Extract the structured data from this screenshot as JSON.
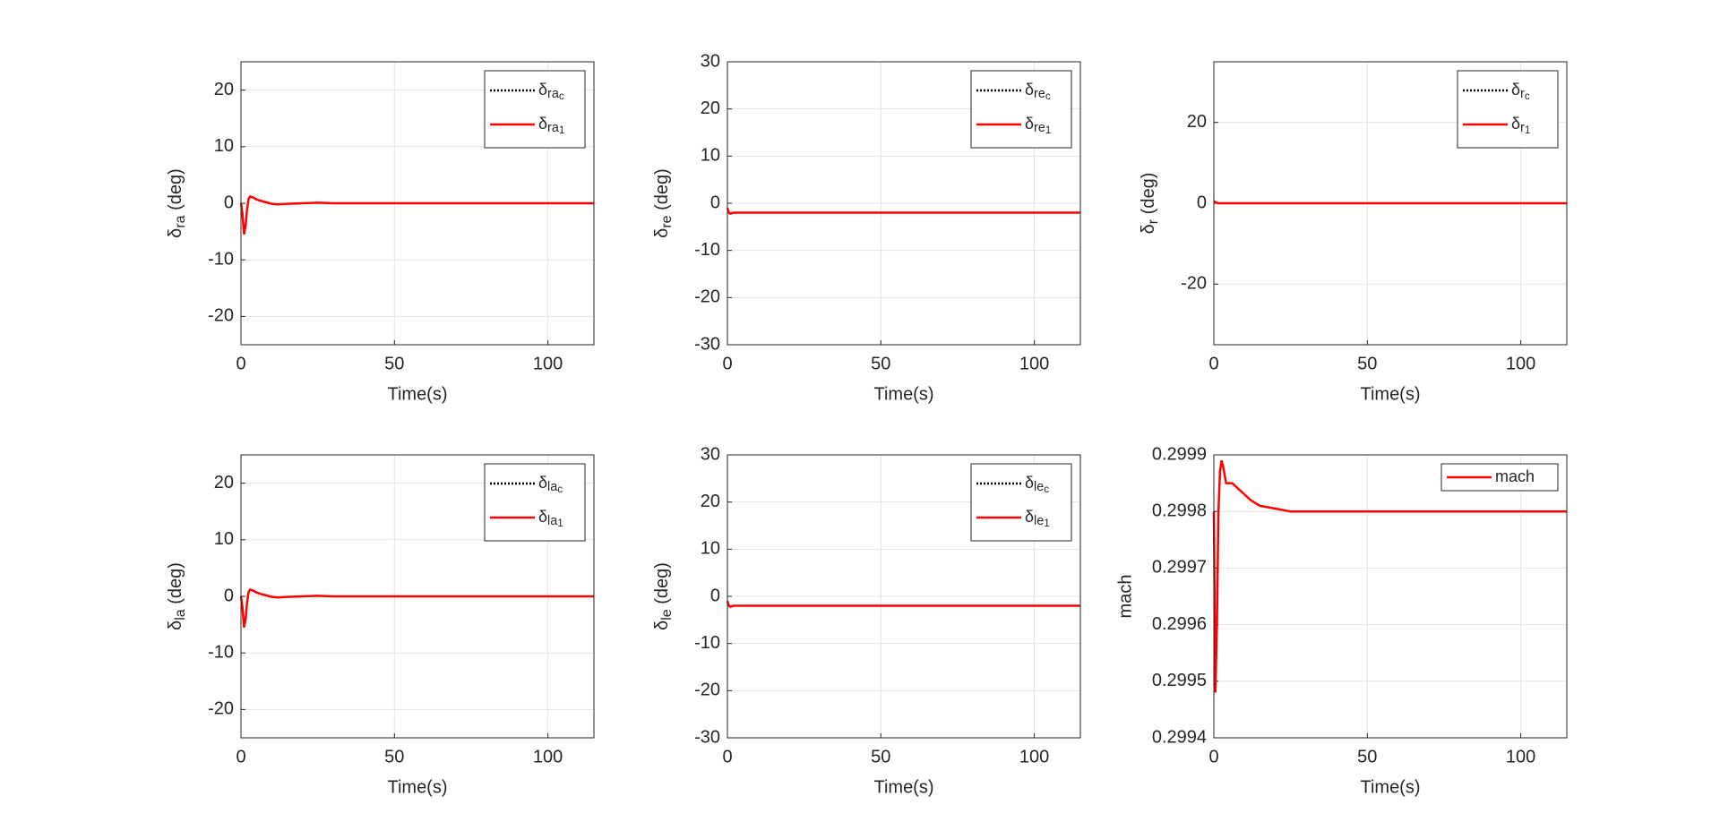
{
  "chart_data": [
    {
      "type": "line",
      "xlabel": "Time(s)",
      "ylabel": "δ_{ra} (deg)",
      "x": [
        0,
        0.5,
        1,
        1.5,
        2,
        2.5,
        3,
        4,
        5,
        6,
        8,
        10,
        12,
        15,
        20,
        25,
        30,
        40,
        60,
        80,
        100,
        115
      ],
      "series": [
        {
          "name": "δ_{ra_c}",
          "color": "#000000",
          "style": "dotted",
          "values": [
            0,
            -2,
            -5.5,
            -4,
            -1,
            0.8,
            1.2,
            1,
            0.7,
            0.5,
            0.2,
            -0.1,
            -0.2,
            -0.1,
            0,
            0.1,
            0,
            0,
            0,
            0,
            0,
            0
          ]
        },
        {
          "name": "δ_{ra_1}",
          "color": "#ff0000",
          "style": "solid",
          "values": [
            0,
            -2,
            -5.5,
            -4,
            -1,
            0.8,
            1.2,
            1,
            0.7,
            0.5,
            0.2,
            -0.1,
            -0.2,
            -0.1,
            0,
            0.1,
            0,
            0,
            0,
            0,
            0,
            0
          ]
        }
      ],
      "xlim": [
        0,
        115
      ],
      "xticks": [
        0,
        50,
        100
      ],
      "ylim": [
        -25,
        25
      ],
      "yticks": [
        -20,
        -10,
        0,
        10,
        20
      ],
      "grid": true,
      "legend": "northeast"
    },
    {
      "type": "line",
      "xlabel": "Time(s)",
      "ylabel": "δ_{re} (deg)",
      "x": [
        0,
        0.5,
        1,
        1.5,
        2,
        2.5,
        3,
        4,
        5,
        6,
        8,
        10,
        12,
        15,
        20,
        25,
        30,
        40,
        60,
        80,
        100,
        115
      ],
      "series": [
        {
          "name": "δ_{re_c}",
          "color": "#000000",
          "style": "dotted",
          "values": [
            -1,
            -2,
            -2.2,
            -2.1,
            -2,
            -2,
            -2,
            -2,
            -2,
            -2,
            -2,
            -2,
            -2,
            -2,
            -2,
            -2,
            -2,
            -2,
            -2,
            -2,
            -2,
            -2
          ]
        },
        {
          "name": "δ_{re_1}",
          "color": "#ff0000",
          "style": "solid",
          "values": [
            -1,
            -2,
            -2.2,
            -2.1,
            -2,
            -2,
            -2,
            -2,
            -2,
            -2,
            -2,
            -2,
            -2,
            -2,
            -2,
            -2,
            -2,
            -2,
            -2,
            -2,
            -2,
            -2
          ]
        }
      ],
      "xlim": [
        0,
        115
      ],
      "xticks": [
        0,
        50,
        100
      ],
      "ylim": [
        -30,
        30
      ],
      "yticks": [
        -30,
        -20,
        -10,
        0,
        10,
        20,
        30
      ],
      "grid": true,
      "legend": "northeast"
    },
    {
      "type": "line",
      "xlabel": "Time(s)",
      "ylabel": "δ_{r} (deg)",
      "x": [
        0,
        0.5,
        1,
        1.5,
        2,
        2.5,
        3,
        4,
        5,
        6,
        8,
        10,
        12,
        15,
        20,
        25,
        30,
        40,
        60,
        80,
        100,
        115
      ],
      "series": [
        {
          "name": "δ_{r_c}",
          "color": "#000000",
          "style": "dotted",
          "values": [
            0.5,
            0.3,
            0.1,
            0,
            0,
            0,
            0,
            0,
            0,
            0,
            0,
            0,
            0,
            0,
            0,
            0,
            0,
            0,
            0,
            0,
            0,
            0
          ]
        },
        {
          "name": "δ_{r_1}",
          "color": "#ff0000",
          "style": "solid",
          "values": [
            0.5,
            0.3,
            0.1,
            0,
            0,
            0,
            0,
            0,
            0,
            0,
            0,
            0,
            0,
            0,
            0,
            0,
            0,
            0,
            0,
            0,
            0,
            0
          ]
        }
      ],
      "xlim": [
        0,
        115
      ],
      "xticks": [
        0,
        50,
        100
      ],
      "ylim": [
        -35,
        35
      ],
      "yticks": [
        -20,
        0,
        20
      ],
      "grid": true,
      "legend": "northeast"
    },
    {
      "type": "line",
      "xlabel": "Time(s)",
      "ylabel": "δ_{la} (deg)",
      "x": [
        0,
        0.5,
        1,
        1.5,
        2,
        2.5,
        3,
        4,
        5,
        6,
        8,
        10,
        12,
        15,
        20,
        25,
        30,
        40,
        60,
        80,
        100,
        115
      ],
      "series": [
        {
          "name": "δ_{la_c}",
          "color": "#000000",
          "style": "dotted",
          "values": [
            0,
            -2,
            -5.5,
            -4,
            -1,
            0.8,
            1.2,
            1,
            0.7,
            0.5,
            0.2,
            -0.1,
            -0.2,
            -0.1,
            0,
            0.1,
            0,
            0,
            0,
            0,
            0,
            0
          ]
        },
        {
          "name": "δ_{la_1}",
          "color": "#ff0000",
          "style": "solid",
          "values": [
            0,
            -2,
            -5.5,
            -4,
            -1,
            0.8,
            1.2,
            1,
            0.7,
            0.5,
            0.2,
            -0.1,
            -0.2,
            -0.1,
            0,
            0.1,
            0,
            0,
            0,
            0,
            0,
            0
          ]
        }
      ],
      "xlim": [
        0,
        115
      ],
      "xticks": [
        0,
        50,
        100
      ],
      "ylim": [
        -25,
        25
      ],
      "yticks": [
        -20,
        -10,
        0,
        10,
        20
      ],
      "grid": true,
      "legend": "northeast"
    },
    {
      "type": "line",
      "xlabel": "Time(s)",
      "ylabel": "δ_{le} (deg)",
      "x": [
        0,
        0.5,
        1,
        1.5,
        2,
        2.5,
        3,
        4,
        5,
        6,
        8,
        10,
        12,
        15,
        20,
        25,
        30,
        40,
        60,
        80,
        100,
        115
      ],
      "series": [
        {
          "name": "δ_{le_c}",
          "color": "#000000",
          "style": "dotted",
          "values": [
            -1,
            -2,
            -2.2,
            -2.1,
            -2,
            -2,
            -2,
            -2,
            -2,
            -2,
            -2,
            -2,
            -2,
            -2,
            -2,
            -2,
            -2,
            -2,
            -2,
            -2,
            -2,
            -2
          ]
        },
        {
          "name": "δ_{le_1}",
          "color": "#ff0000",
          "style": "solid",
          "values": [
            -1,
            -2,
            -2.2,
            -2.1,
            -2,
            -2,
            -2,
            -2,
            -2,
            -2,
            -2,
            -2,
            -2,
            -2,
            -2,
            -2,
            -2,
            -2,
            -2,
            -2,
            -2,
            -2
          ]
        }
      ],
      "xlim": [
        0,
        115
      ],
      "xticks": [
        0,
        50,
        100
      ],
      "ylim": [
        -30,
        30
      ],
      "yticks": [
        -30,
        -20,
        -10,
        0,
        10,
        20,
        30
      ],
      "grid": true,
      "legend": "northeast"
    },
    {
      "type": "line",
      "xlabel": "Time(s)",
      "ylabel": "mach",
      "x": [
        0,
        0.5,
        1,
        1.5,
        2,
        2.5,
        3,
        4,
        5,
        6,
        8,
        10,
        12,
        15,
        20,
        25,
        30,
        40,
        60,
        80,
        100,
        115
      ],
      "series": [
        {
          "name": "mach",
          "color": "#ff0000",
          "style": "solid",
          "values": [
            0.2998,
            0.29948,
            0.2996,
            0.2998,
            0.29987,
            0.29989,
            0.29988,
            0.29985,
            0.29985,
            0.29985,
            0.29984,
            0.29983,
            0.29982,
            0.29981,
            0.299805,
            0.2998,
            0.2998,
            0.2998,
            0.2998,
            0.2998,
            0.2998,
            0.2998
          ]
        }
      ],
      "xlim": [
        0,
        115
      ],
      "xticks": [
        0,
        50,
        100
      ],
      "ylim": [
        0.2994,
        0.2999
      ],
      "yticks": [
        0.2994,
        0.2995,
        0.2996,
        0.2997,
        0.2998,
        0.2999
      ],
      "grid": true,
      "legend": "northeast"
    }
  ]
}
